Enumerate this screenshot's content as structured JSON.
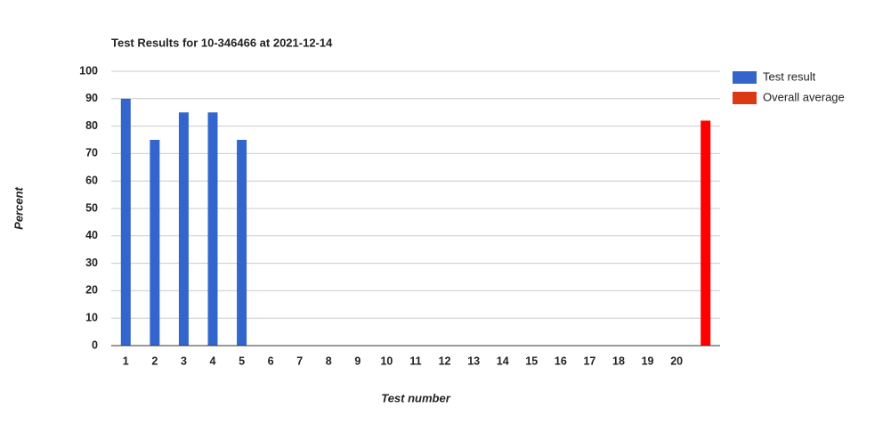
{
  "chart_data": {
    "type": "bar",
    "title": "Test Results for 10-346466 at 2021-12-14",
    "x_label": "Test number",
    "y_label": "Percent",
    "categories": [
      "1",
      "2",
      "3",
      "4",
      "5",
      "6",
      "7",
      "8",
      "9",
      "10",
      "11",
      "12",
      "13",
      "14",
      "15",
      "16",
      "17",
      "18",
      "19",
      "20",
      null
    ],
    "series": [
      {
        "name": "Test result",
        "color": "#3366cc",
        "bar_color": "#3366cc",
        "values": [
          90,
          75,
          85,
          85,
          75,
          0,
          0,
          0,
          0,
          0,
          0,
          0,
          0,
          0,
          0,
          0,
          0,
          0,
          0,
          0,
          null
        ]
      },
      {
        "name": "Overall average",
        "color": "#dc3912",
        "bar_color": "#ff0000",
        "values": [
          null,
          null,
          null,
          null,
          null,
          null,
          null,
          null,
          null,
          null,
          null,
          null,
          null,
          null,
          null,
          null,
          null,
          null,
          null,
          null,
          82
        ]
      }
    ],
    "ylim": [
      0,
      100
    ],
    "yticks": [
      0,
      10,
      20,
      30,
      40,
      50,
      60,
      70,
      80,
      90,
      100
    ],
    "grid": true,
    "legend": "right"
  }
}
